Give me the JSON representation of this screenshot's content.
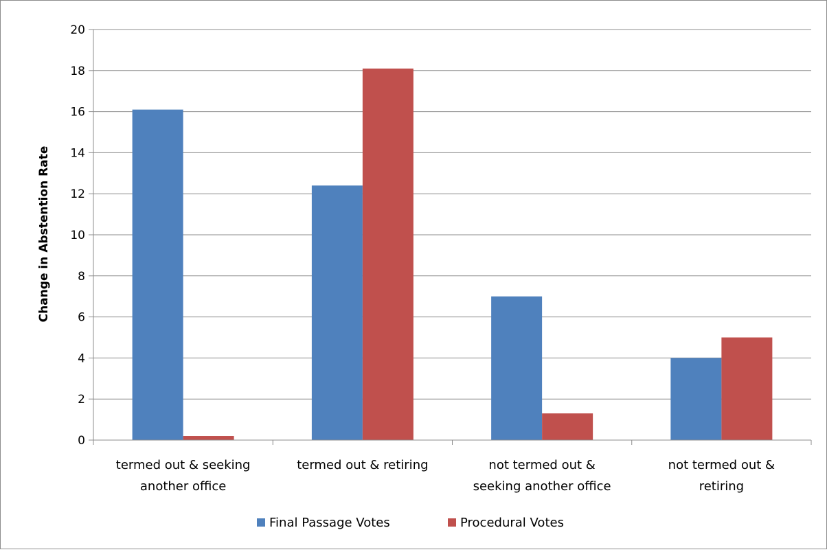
{
  "chart_data": {
    "type": "bar",
    "ylabel": "Change in Abstention Rate",
    "xlabel": "",
    "ylim": [
      0,
      20
    ],
    "ytick_step": 2,
    "grid": true,
    "legend_position": "bottom",
    "categories": [
      [
        "termed out & seeking",
        "another office"
      ],
      [
        "termed out & retiring"
      ],
      [
        "not termed out &",
        "seeking another office"
      ],
      [
        "not termed out &",
        "retiring"
      ]
    ],
    "series": [
      {
        "name": "Final Passage Votes",
        "color": "#4f81bd",
        "values": [
          16.1,
          12.4,
          7.0,
          4.0
        ]
      },
      {
        "name": "Procedural Votes",
        "color": "#c0504d",
        "values": [
          0.2,
          18.1,
          1.3,
          5.0
        ]
      }
    ]
  }
}
